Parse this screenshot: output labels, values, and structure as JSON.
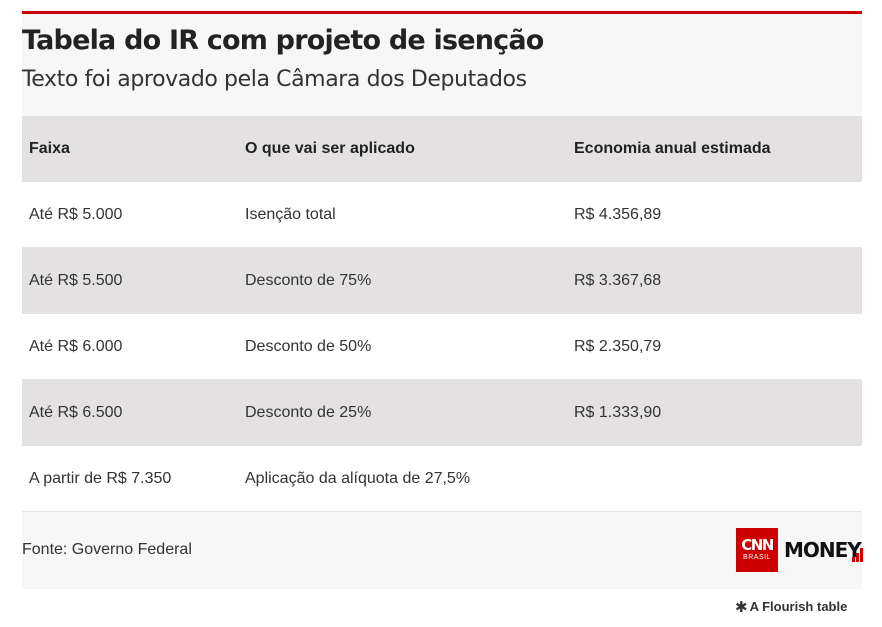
{
  "header": {
    "title": "Tabela do IR com projeto de isenção",
    "subtitle": "Texto foi aprovado pela Câmara dos Deputados"
  },
  "table": {
    "columns": [
      "Faixa",
      "O que vai ser aplicado",
      "Economia anual estimada"
    ],
    "rows": [
      [
        "Até R$ 5.000",
        "Isenção total",
        "R$ 4.356,89"
      ],
      [
        "Até R$ 5.500",
        "Desconto de 75%",
        "R$ 3.367,68"
      ],
      [
        "Até R$ 6.000",
        "Desconto de 50%",
        "R$ 2.350,79"
      ],
      [
        "Até R$ 6.500",
        "Desconto de 25%",
        "R$ 1.333,90"
      ],
      [
        "A partir de R$ 7.350",
        "Aplicação da alíquota de 27,5%",
        ""
      ]
    ]
  },
  "footer": {
    "source": "Fonte: Governo Federal",
    "logo_cnn": "CNN",
    "logo_cnn_sub": "BRASIL",
    "logo_money": "MONEY",
    "flourish_label": "A Flourish table",
    "flourish_icon": "asterisk-icon"
  },
  "colors": {
    "accent": "#cc0000",
    "row_shade": "#e4e1e2",
    "card_bg": "#f7f7f7"
  }
}
